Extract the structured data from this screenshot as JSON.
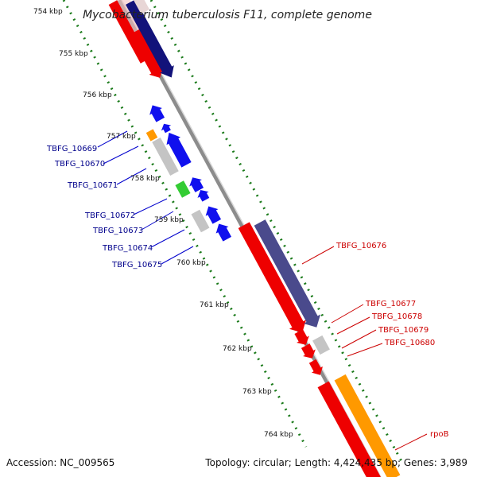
{
  "title": "Mycobacterium tuberculosis F11, complete genome",
  "footer": {
    "accession": "Accession: NC_009565",
    "summary": "Topology: circular; Length: 4,424,435 bp; Genes: 3,989"
  },
  "scale_labels": [
    "754 kbp",
    "755 kbp",
    "756 kbp",
    "757 kbp",
    "758 kbp",
    "759 kbp",
    "760 kbp",
    "761 kbp",
    "762 kbp",
    "763 kbp",
    "764 kbp"
  ],
  "genes_left": [
    "TBFG_10669",
    "TBFG_10670",
    "TBFG_10671",
    "TBFG_10672",
    "TBFG_10673",
    "TBFG_10674",
    "TBFG_10675"
  ],
  "genes_right": [
    "TBFG_10676",
    "TBFG_10677",
    "TBFG_10678",
    "TBFG_10679",
    "TBFG_10680",
    "rpoB"
  ],
  "colors": {
    "reverse_strand_label": "#00008b",
    "forward_strand_label": "#cc0000",
    "backbone": "#8c8c8c",
    "scale_dots": "#1a7a1a",
    "gene_red": "#ee0000",
    "gene_blue": "#1010ee",
    "gene_navy": "#12127a",
    "gene_slate": "#4a4a8c",
    "gene_gray": "#c4c4c4",
    "gene_orange": "#ff9900",
    "gene_green": "#33cc33"
  }
}
